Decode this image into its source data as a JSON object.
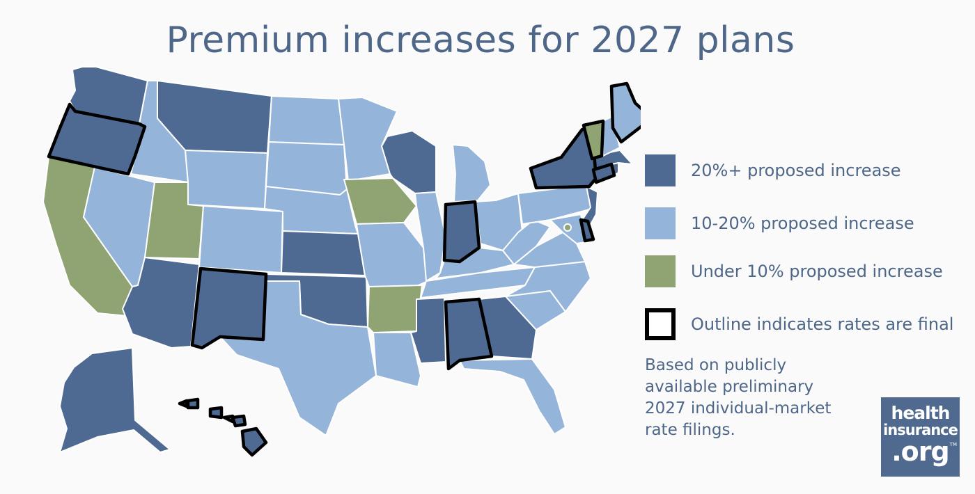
{
  "title": "Premium increases for 2027 plans",
  "colors": {
    "high": "#4e6a92",
    "mid": "#94b4d9",
    "low": "#8fa472",
    "final_outline": "#000000",
    "text": "#4e6688"
  },
  "legend": [
    {
      "key": "high",
      "label": "20%+ proposed increase"
    },
    {
      "key": "mid",
      "label": "10-20% proposed increase"
    },
    {
      "key": "low",
      "label": "Under 10% proposed increase"
    },
    {
      "key": "final",
      "label": "Outline indicates rates are final"
    }
  ],
  "note_lines": [
    "Based on publicly",
    "available preliminary",
    "2027 individual-market",
    "rate filings."
  ],
  "logo": {
    "line1": "health",
    "line2": "insurance",
    "line3": ".org",
    "tm": "TM"
  },
  "states": {
    "WA": {
      "category": "high",
      "final": false
    },
    "OR": {
      "category": "high",
      "final": true
    },
    "CA": {
      "category": "low",
      "final": false
    },
    "ID": {
      "category": "mid",
      "final": false
    },
    "NV": {
      "category": "mid",
      "final": false
    },
    "MT": {
      "category": "high",
      "final": false
    },
    "WY": {
      "category": "mid",
      "final": false
    },
    "UT": {
      "category": "low",
      "final": false
    },
    "CO": {
      "category": "mid",
      "final": false
    },
    "AZ": {
      "category": "high",
      "final": false
    },
    "NM": {
      "category": "high",
      "final": true
    },
    "ND": {
      "category": "mid",
      "final": false
    },
    "SD": {
      "category": "mid",
      "final": false
    },
    "NE": {
      "category": "mid",
      "final": false
    },
    "KS": {
      "category": "high",
      "final": false
    },
    "OK": {
      "category": "high",
      "final": false
    },
    "TX": {
      "category": "mid",
      "final": false
    },
    "MN": {
      "category": "mid",
      "final": false
    },
    "IA": {
      "category": "low",
      "final": false
    },
    "MO": {
      "category": "mid",
      "final": false
    },
    "AR": {
      "category": "low",
      "final": false
    },
    "LA": {
      "category": "mid",
      "final": false
    },
    "WI": {
      "category": "high",
      "final": false
    },
    "IL": {
      "category": "mid",
      "final": false
    },
    "MI": {
      "category": "mid",
      "final": false
    },
    "IN": {
      "category": "high",
      "final": true
    },
    "OH": {
      "category": "mid",
      "final": false
    },
    "KY": {
      "category": "mid",
      "final": false
    },
    "TN": {
      "category": "mid",
      "final": false
    },
    "MS": {
      "category": "high",
      "final": false
    },
    "AL": {
      "category": "high",
      "final": true
    },
    "GA": {
      "category": "high",
      "final": false
    },
    "FL": {
      "category": "mid",
      "final": false
    },
    "SC": {
      "category": "mid",
      "final": false
    },
    "NC": {
      "category": "mid",
      "final": false
    },
    "VA": {
      "category": "mid",
      "final": false
    },
    "WV": {
      "category": "mid",
      "final": false
    },
    "PA": {
      "category": "mid",
      "final": false
    },
    "NY": {
      "category": "high",
      "final": true
    },
    "NJ": {
      "category": "high",
      "final": false
    },
    "DE": {
      "category": "high",
      "final": true
    },
    "MD": {
      "category": "mid",
      "final": false
    },
    "DC": {
      "category": "low",
      "final": false
    },
    "CT": {
      "category": "high",
      "final": true
    },
    "RI": {
      "category": "high",
      "final": false
    },
    "MA": {
      "category": "high",
      "final": false
    },
    "VT": {
      "category": "low",
      "final": true
    },
    "NH": {
      "category": "mid",
      "final": false
    },
    "ME": {
      "category": "mid",
      "final": true
    },
    "AK": {
      "category": "high",
      "final": false
    },
    "HI": {
      "category": "high",
      "final": true
    }
  }
}
